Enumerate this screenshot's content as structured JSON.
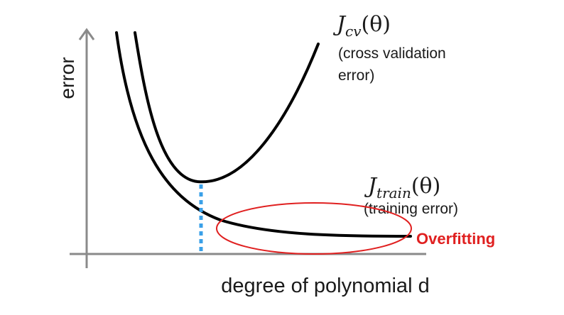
{
  "axes": {
    "y_label": "error",
    "x_label": "degree of polynomial d"
  },
  "curves": {
    "cv": {
      "symbol": "J",
      "subscript": "cv",
      "argument": "(θ)",
      "description_line1": "(cross validation",
      "description_line2": "error)"
    },
    "train": {
      "symbol": "J",
      "subscript": "train",
      "argument": "(θ)",
      "description": "(training error)"
    }
  },
  "annotation": {
    "label": "Overfitting",
    "color": "#e02020"
  },
  "colors": {
    "curve": "#000000",
    "axis": "#8a8a8a",
    "marker": "#3aa0e8"
  }
}
